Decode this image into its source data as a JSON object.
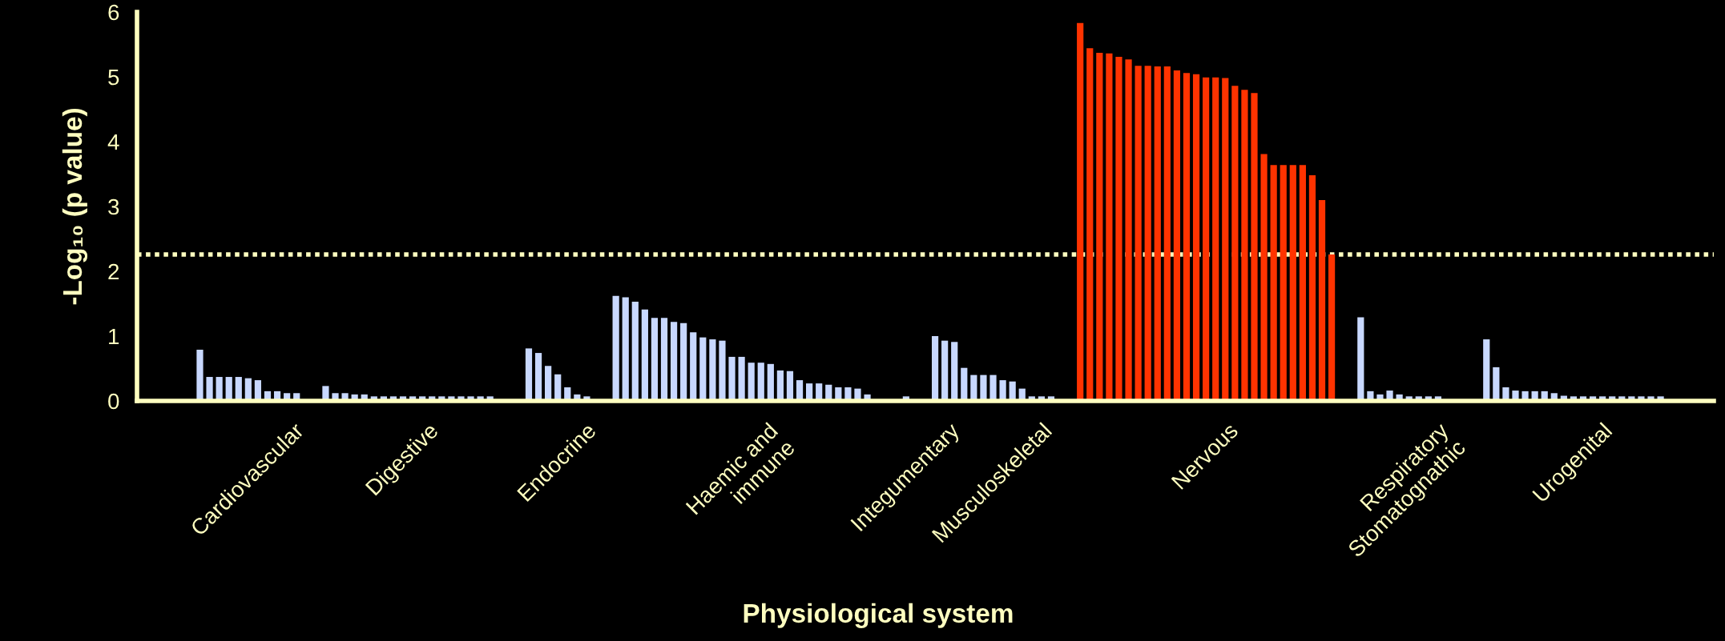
{
  "chart_data": {
    "type": "bar",
    "xlabel": "Physiological system",
    "ylabel": "-Log₁₀ (p value)",
    "categories": [
      null,
      null,
      null,
      null,
      null,
      null,
      null,
      null,
      null,
      null,
      null,
      "Cardiovascular",
      null,
      null,
      null,
      null,
      null,
      null,
      null,
      null,
      null,
      null,
      null,
      null,
      null,
      null,
      null,
      "Digestive",
      null,
      null,
      null,
      null,
      null,
      null,
      null,
      null,
      null,
      null,
      null,
      null,
      null,
      null,
      null,
      "Endocrine",
      null,
      null,
      null,
      null,
      null,
      null,
      null,
      null,
      null,
      null,
      null,
      null,
      null,
      null,
      null,
      null,
      null,
      null,
      "Haemic and\nimmune",
      null,
      null,
      null,
      null,
      null,
      null,
      null,
      null,
      null,
      null,
      null,
      null,
      null,
      null,
      null,
      null,
      "Integumentary",
      null,
      null,
      null,
      null,
      null,
      null,
      null,
      null,
      "Musculoskeletal",
      null,
      null,
      null,
      null,
      null,
      null,
      null,
      null,
      null,
      null,
      null,
      null,
      null,
      null,
      null,
      null,
      null,
      null,
      null,
      null,
      null,
      "Nervous",
      null,
      null,
      null,
      null,
      null,
      null,
      null,
      null,
      null,
      null,
      null,
      null,
      null,
      null,
      null,
      null,
      null,
      null,
      null,
      "Respiratory\nStomatognathic",
      null,
      null,
      null,
      null,
      null,
      null,
      null,
      null,
      null,
      null,
      null,
      null,
      null,
      null,
      null,
      null,
      null,
      "Urogenital",
      null,
      null,
      null,
      null,
      null,
      null,
      null,
      null,
      null,
      null,
      null,
      null,
      null,
      null
    ],
    "values": [
      null,
      null,
      null,
      null,
      null,
      null,
      0.79,
      0.37,
      0.37,
      0.37,
      0.37,
      0.35,
      0.32,
      0.15,
      0.15,
      0.12,
      0.12,
      null,
      null,
      0.23,
      0.12,
      0.12,
      0.1,
      0.1,
      0.07,
      0.07,
      0.07,
      0.07,
      0.07,
      0.07,
      0.07,
      0.07,
      0.07,
      0.07,
      0.07,
      0.07,
      0.07,
      null,
      null,
      null,
      0.81,
      0.74,
      0.54,
      0.41,
      0.21,
      0.1,
      0.07,
      null,
      null,
      1.62,
      1.6,
      1.53,
      1.41,
      1.28,
      1.28,
      1.22,
      1.2,
      1.06,
      0.98,
      0.95,
      0.93,
      0.68,
      0.68,
      0.59,
      0.59,
      0.57,
      0.47,
      0.46,
      0.32,
      0.27,
      0.27,
      0.25,
      0.21,
      0.21,
      0.19,
      0.1,
      null,
      null,
      null,
      0.07,
      null,
      null,
      1.0,
      0.93,
      0.91,
      0.51,
      0.4,
      0.4,
      0.4,
      0.32,
      0.3,
      0.19,
      0.07,
      0.07,
      0.07,
      null,
      null,
      5.83,
      5.44,
      5.37,
      5.36,
      5.31,
      5.27,
      5.17,
      5.17,
      5.16,
      5.16,
      5.1,
      5.06,
      5.04,
      4.99,
      4.99,
      4.98,
      4.86,
      4.8,
      4.75,
      3.81,
      3.64,
      3.64,
      3.64,
      3.64,
      3.48,
      3.1,
      2.26,
      null,
      null,
      1.29,
      0.15,
      0.1,
      0.16,
      0.1,
      0.07,
      0.07,
      0.07,
      0.07,
      null,
      null,
      null,
      null,
      0.95,
      0.52,
      0.21,
      0.16,
      0.15,
      0.15,
      0.15,
      0.12,
      0.08,
      0.07,
      0.07,
      0.07,
      0.07,
      0.07,
      0.07,
      0.07,
      0.07,
      0.07,
      0.07,
      null,
      null,
      null,
      null,
      null
    ],
    "colors": [
      null,
      null,
      null,
      null,
      null,
      null,
      "#c8d8ff",
      "#c8d8ff",
      "#c8d8ff",
      "#c8d8ff",
      "#c8d8ff",
      "#c8d8ff",
      "#c8d8ff",
      "#c8d8ff",
      "#c8d8ff",
      "#c8d8ff",
      "#c8d8ff",
      null,
      null,
      "#c8d8ff",
      "#c8d8ff",
      "#c8d8ff",
      "#c8d8ff",
      "#c8d8ff",
      "#c8d8ff",
      "#c8d8ff",
      "#c8d8ff",
      "#c8d8ff",
      "#c8d8ff",
      "#c8d8ff",
      "#c8d8ff",
      "#c8d8ff",
      "#c8d8ff",
      "#c8d8ff",
      "#c8d8ff",
      "#c8d8ff",
      "#c8d8ff",
      null,
      null,
      null,
      "#c8d8ff",
      "#c8d8ff",
      "#c8d8ff",
      "#c8d8ff",
      "#c8d8ff",
      "#c8d8ff",
      "#c8d8ff",
      null,
      null,
      "#c8d8ff",
      "#c8d8ff",
      "#c8d8ff",
      "#c8d8ff",
      "#c8d8ff",
      "#c8d8ff",
      "#c8d8ff",
      "#c8d8ff",
      "#c8d8ff",
      "#c8d8ff",
      "#c8d8ff",
      "#c8d8ff",
      "#c8d8ff",
      "#c8d8ff",
      "#c8d8ff",
      "#c8d8ff",
      "#c8d8ff",
      "#c8d8ff",
      "#c8d8ff",
      "#c8d8ff",
      "#c8d8ff",
      "#c8d8ff",
      "#c8d8ff",
      "#c8d8ff",
      "#c8d8ff",
      "#c8d8ff",
      "#c8d8ff",
      null,
      null,
      null,
      "#c8d8ff",
      null,
      null,
      "#c8d8ff",
      "#c8d8ff",
      "#c8d8ff",
      "#c8d8ff",
      "#c8d8ff",
      "#c8d8ff",
      "#c8d8ff",
      "#c8d8ff",
      "#c8d8ff",
      "#c8d8ff",
      "#c8d8ff",
      "#c8d8ff",
      "#c8d8ff",
      null,
      null,
      "#ff3300",
      "#ff3300",
      "#ff3300",
      "#ff3300",
      "#ff3300",
      "#ff3300",
      "#ff3300",
      "#ff3300",
      "#ff3300",
      "#ff3300",
      "#ff3300",
      "#ff3300",
      "#ff3300",
      "#ff3300",
      "#ff3300",
      "#ff3300",
      "#ff3300",
      "#ff3300",
      "#ff3300",
      "#ff3300",
      "#ff3300",
      "#ff3300",
      "#ff3300",
      "#ff3300",
      "#ff3300",
      "#ff3300",
      "#ff3300",
      null,
      null,
      "#c8d8ff",
      "#c8d8ff",
      "#c8d8ff",
      "#c8d8ff",
      "#c8d8ff",
      "#c8d8ff",
      "#c8d8ff",
      "#c8d8ff",
      "#c8d8ff",
      null,
      null,
      null,
      null,
      "#c8d8ff",
      "#c8d8ff",
      "#c8d8ff",
      "#c8d8ff",
      "#c8d8ff",
      "#c8d8ff",
      "#c8d8ff",
      "#c8d8ff",
      "#c8d8ff",
      "#c8d8ff",
      "#c8d8ff",
      "#c8d8ff",
      "#c8d8ff",
      "#c8d8ff",
      "#c8d8ff",
      "#c8d8ff",
      "#c8d8ff",
      "#c8d8ff",
      "#c8d8ff",
      null,
      null,
      null,
      null,
      null
    ],
    "ylim": [
      0,
      6
    ],
    "yticks": [
      0,
      1,
      2,
      3,
      4,
      5,
      6
    ],
    "ref_lines": [
      {
        "axis": "y",
        "value": 2.26,
        "color": "#ffffc0",
        "line_style": "dotted"
      }
    ]
  }
}
